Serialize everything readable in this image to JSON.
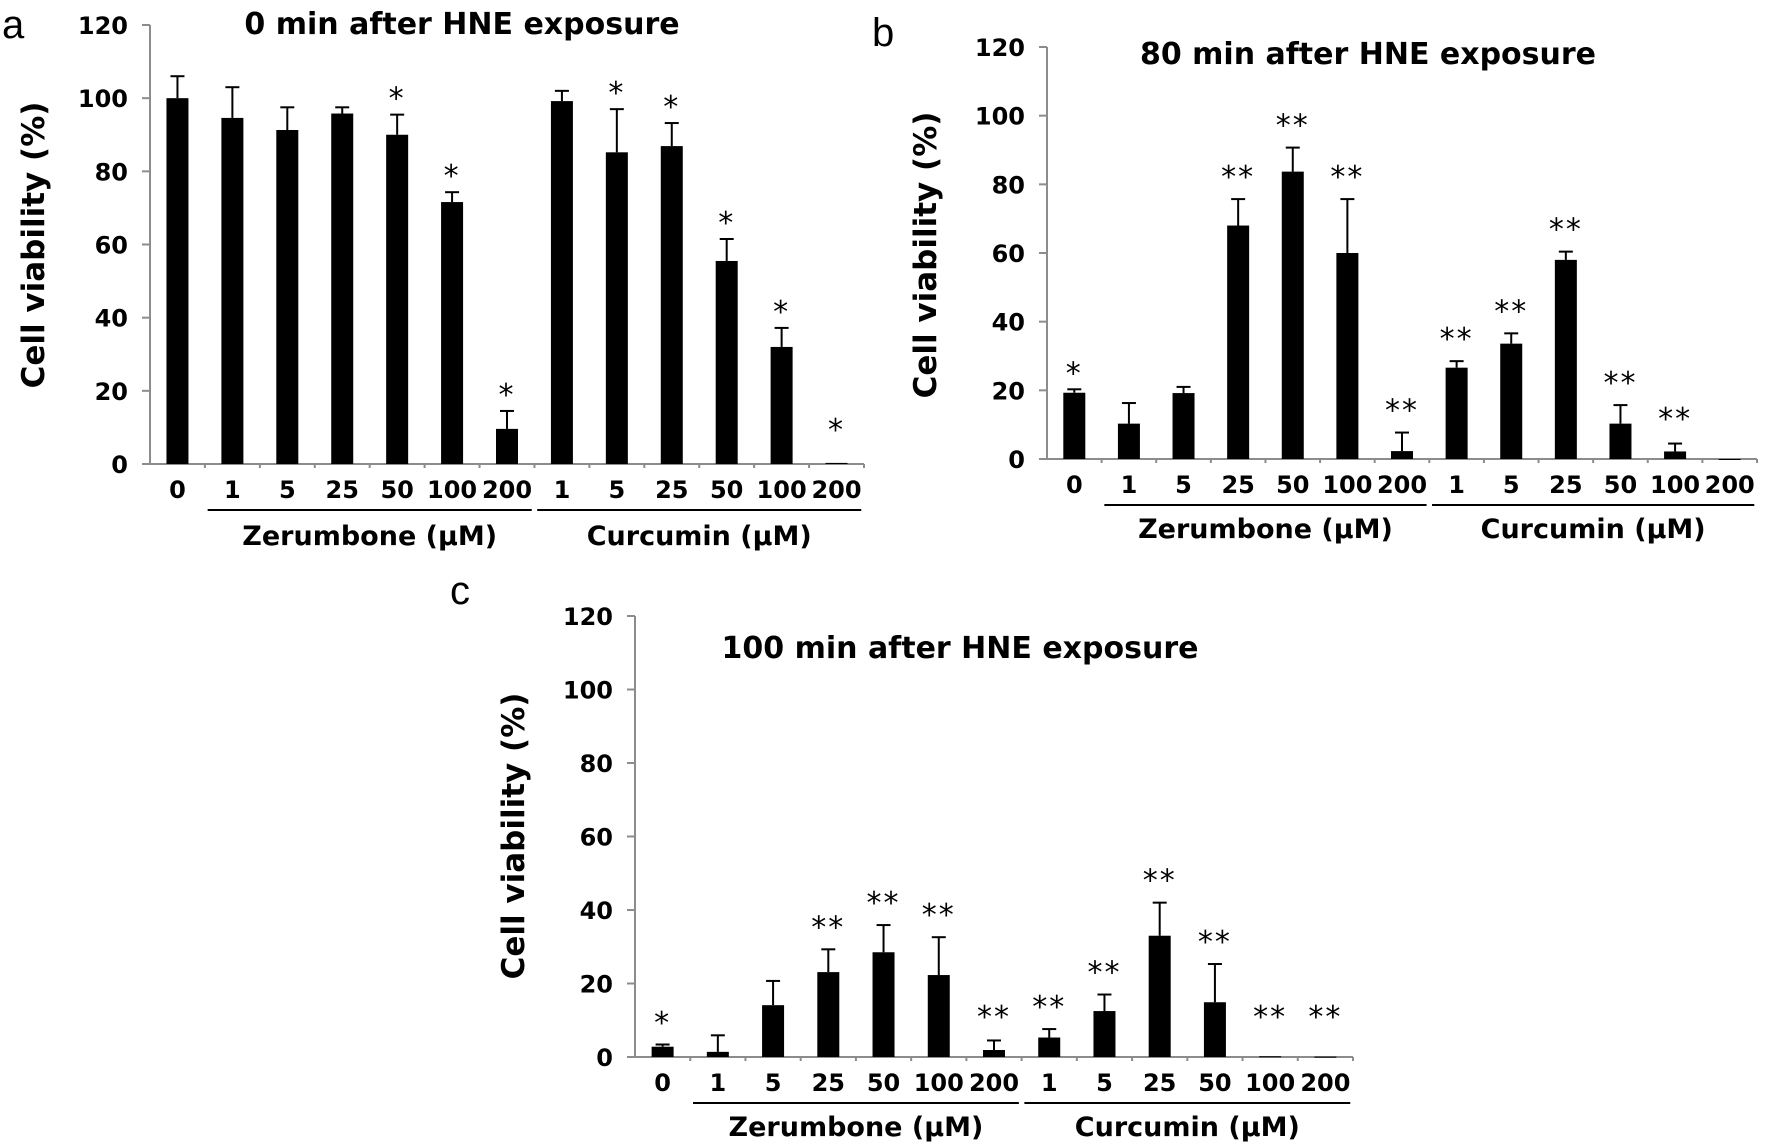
{
  "chart_data": [
    {
      "id": "a",
      "type": "bar",
      "panel_label": "a",
      "title": "0 min after HNE exposure",
      "xlabel": "",
      "ylabel": "Cell viability (%)",
      "ylim": [
        0,
        120
      ],
      "yticks": [
        0,
        20,
        40,
        60,
        80,
        100,
        120
      ],
      "grid": false,
      "categories": [
        "0",
        "1",
        "5",
        "25",
        "50",
        "100",
        "200",
        "1",
        "5",
        "25",
        "50",
        "100",
        "200"
      ],
      "groups": [
        {
          "label": "Zerumbone (μM)",
          "from": 1,
          "to": 6
        },
        {
          "label": "Curcumin (μM)",
          "from": 7,
          "to": 12
        }
      ],
      "values": [
        100,
        94.6,
        91.3,
        95.8,
        90.0,
        71.6,
        9.6,
        99.2,
        85.2,
        86.9,
        55.5,
        32.0,
        0.3
      ],
      "error_upper": [
        106.0,
        103.0,
        97.5,
        97.5,
        95.5,
        74.3,
        14.5,
        102.0,
        97.0,
        93.2,
        61.5,
        37.2,
        0.3
      ],
      "significance": [
        "",
        "",
        "",
        "",
        "*",
        "*",
        "*",
        "",
        "*",
        "*",
        "*",
        "*",
        "*"
      ]
    },
    {
      "id": "b",
      "type": "bar",
      "panel_label": "b",
      "title": "80 min after HNE exposure",
      "xlabel": "",
      "ylabel": "Cell viability (%)",
      "ylim": [
        0,
        120
      ],
      "yticks": [
        0,
        20,
        40,
        60,
        80,
        100,
        120
      ],
      "grid": false,
      "categories": [
        "0",
        "1",
        "5",
        "25",
        "50",
        "100",
        "200",
        "1",
        "5",
        "25",
        "50",
        "100",
        "200"
      ],
      "groups": [
        {
          "label": "Zerumbone (μM)",
          "from": 1,
          "to": 6
        },
        {
          "label": "Curcumin (μM)",
          "from": 7,
          "to": 12
        }
      ],
      "values": [
        19.3,
        10.3,
        19.2,
        68.0,
        83.7,
        60.0,
        2.3,
        26.6,
        33.6,
        58.0,
        10.3,
        2.2,
        0
      ],
      "error_upper": [
        20.3,
        16.3,
        21.0,
        75.7,
        90.7,
        75.7,
        7.7,
        28.5,
        36.6,
        60.4,
        15.7,
        4.5,
        0
      ],
      "significance": [
        "*",
        "",
        "",
        "**",
        "**",
        "**",
        "**",
        "**",
        "**",
        "**",
        "**",
        "**",
        ""
      ]
    },
    {
      "id": "c",
      "type": "bar",
      "panel_label": "c",
      "title": "100 min after HNE exposure",
      "xlabel": "",
      "ylabel": "Cell viability (%)",
      "ylim": [
        0,
        120
      ],
      "yticks": [
        0,
        20,
        40,
        60,
        80,
        100,
        120
      ],
      "grid": false,
      "categories": [
        "0",
        "1",
        "5",
        "25",
        "50",
        "100",
        "200",
        "1",
        "5",
        "25",
        "50",
        "100",
        "200"
      ],
      "groups": [
        {
          "label": "Zerumbone (μM)",
          "from": 1,
          "to": 6
        },
        {
          "label": "Curcumin (μM)",
          "from": 7,
          "to": 12
        }
      ],
      "values": [
        2.8,
        1.4,
        14.1,
        23.1,
        28.5,
        22.3,
        1.9,
        5.3,
        12.5,
        33.0,
        14.9,
        0.2,
        0.1
      ],
      "error_upper": [
        3.4,
        5.9,
        20.7,
        29.3,
        35.9,
        32.6,
        4.5,
        7.6,
        17.0,
        42.0,
        25.3,
        0.2,
        0.1
      ],
      "significance": [
        "*",
        "",
        "",
        "**",
        "**",
        "**",
        "**",
        "**",
        "**",
        "**",
        "**",
        "**",
        "**"
      ]
    }
  ]
}
